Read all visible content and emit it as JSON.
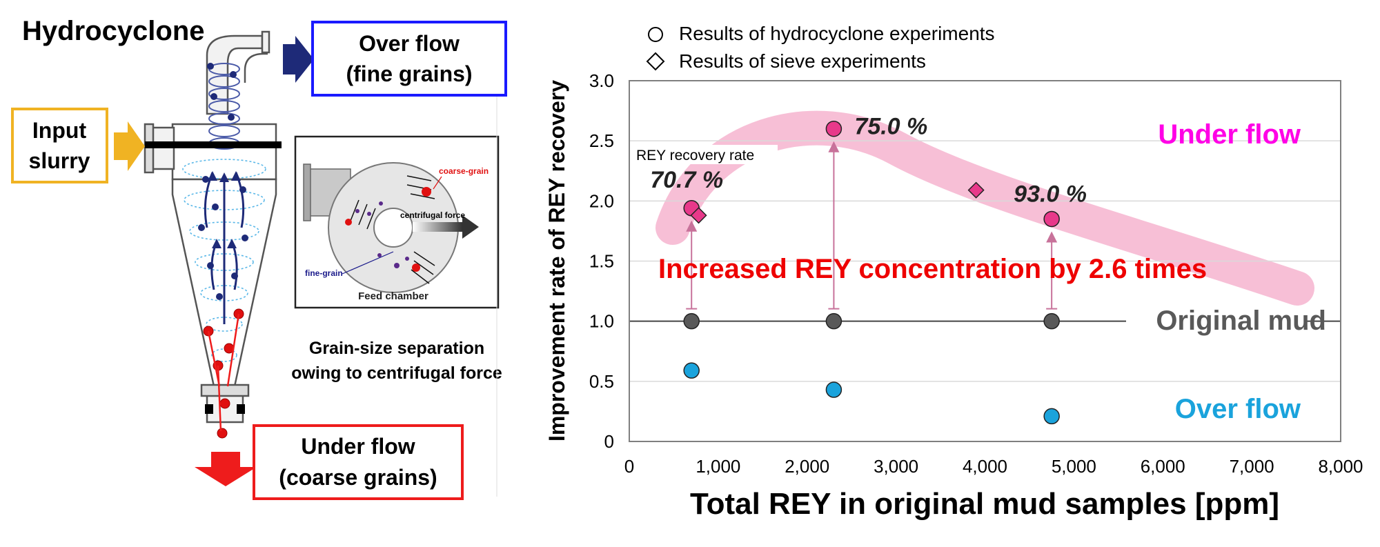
{
  "diagram": {
    "title": "Hydrocyclone",
    "overflow_box": {
      "line1": "Over flow",
      "line2": "(fine grains)",
      "border_color": "#1a1aff"
    },
    "input_box": {
      "line1": "Input",
      "line2": "slurry",
      "border_color": "#f0b323"
    },
    "underflow_box": {
      "line1": "Under flow",
      "line2": "(coarse grains)",
      "border_color": "#ee1c1c"
    },
    "inset": {
      "coarse_label": "coarse-grain",
      "centrifugal_label": "centrifugal force",
      "fine_label": "fine-grain",
      "chamber_label": "Feed chamber"
    },
    "caption_line1": "Grain-size separation",
    "caption_line2": "owing to centrifugal force",
    "colors": {
      "fine": "#1e2a78",
      "coarse": "#e01010",
      "arrow_blue": "#1e2a78",
      "arrow_orange": "#f0b323",
      "arrow_red": "#ee1c1c"
    }
  },
  "chart_data": {
    "type": "scatter",
    "xlabel": "Total REY in original mud samples [ppm]",
    "ylabel": "Improvement rate of REY recovery",
    "xlim": [
      0,
      8000
    ],
    "ylim": [
      0,
      3.0
    ],
    "x_ticks": [
      "0",
      "1,000",
      "2,000",
      "3,000",
      "4,000",
      "5,000",
      "6,000",
      "7,000",
      "8,000"
    ],
    "y_ticks": [
      "0",
      "0.5",
      "1.0",
      "1.5",
      "2.0",
      "2.5",
      "3.0"
    ],
    "grid": "horizontal",
    "legend": [
      {
        "marker": "circle",
        "label": "Results of hydrocyclone experiments"
      },
      {
        "marker": "diamond",
        "label": "Results of sieve experiments"
      }
    ],
    "series": [
      {
        "name": "Under flow",
        "marker": "circle",
        "color": "#e8398a",
        "x": [
          700,
          2300,
          4750
        ],
        "y": [
          1.94,
          2.6,
          1.85
        ]
      },
      {
        "name": "Original mud",
        "marker": "circle",
        "color": "#595959",
        "x": [
          700,
          2300,
          4750
        ],
        "y": [
          1.0,
          1.0,
          1.0
        ]
      },
      {
        "name": "Over flow",
        "marker": "circle",
        "color": "#1aa3dc",
        "x": [
          700,
          2300,
          4750
        ],
        "y": [
          0.59,
          0.43,
          0.21
        ]
      },
      {
        "name": "Sieve",
        "marker": "diamond",
        "color": "#e8398a",
        "x": [
          780,
          3900
        ],
        "y": [
          1.88,
          2.09
        ]
      }
    ],
    "recovery_label_title": "REY recovery rate",
    "recovery_labels": [
      {
        "text": "70.7 %",
        "x": 700,
        "y": 1.94
      },
      {
        "text": "75.0 %",
        "x": 2300,
        "y": 2.6
      },
      {
        "text": "93.0 %",
        "x": 4750,
        "y": 1.85
      }
    ],
    "region_labels": {
      "under": {
        "text": "Under flow",
        "color": "#ff00e6"
      },
      "original": {
        "text": "Original mud",
        "color": "#595959"
      },
      "over": {
        "text": "Over flow",
        "color": "#1aa3dc"
      }
    },
    "annotation": {
      "text": "Increased REY concentration by 2.6 times",
      "color": "#ee0000"
    },
    "band_color": "#f7bfd6"
  }
}
